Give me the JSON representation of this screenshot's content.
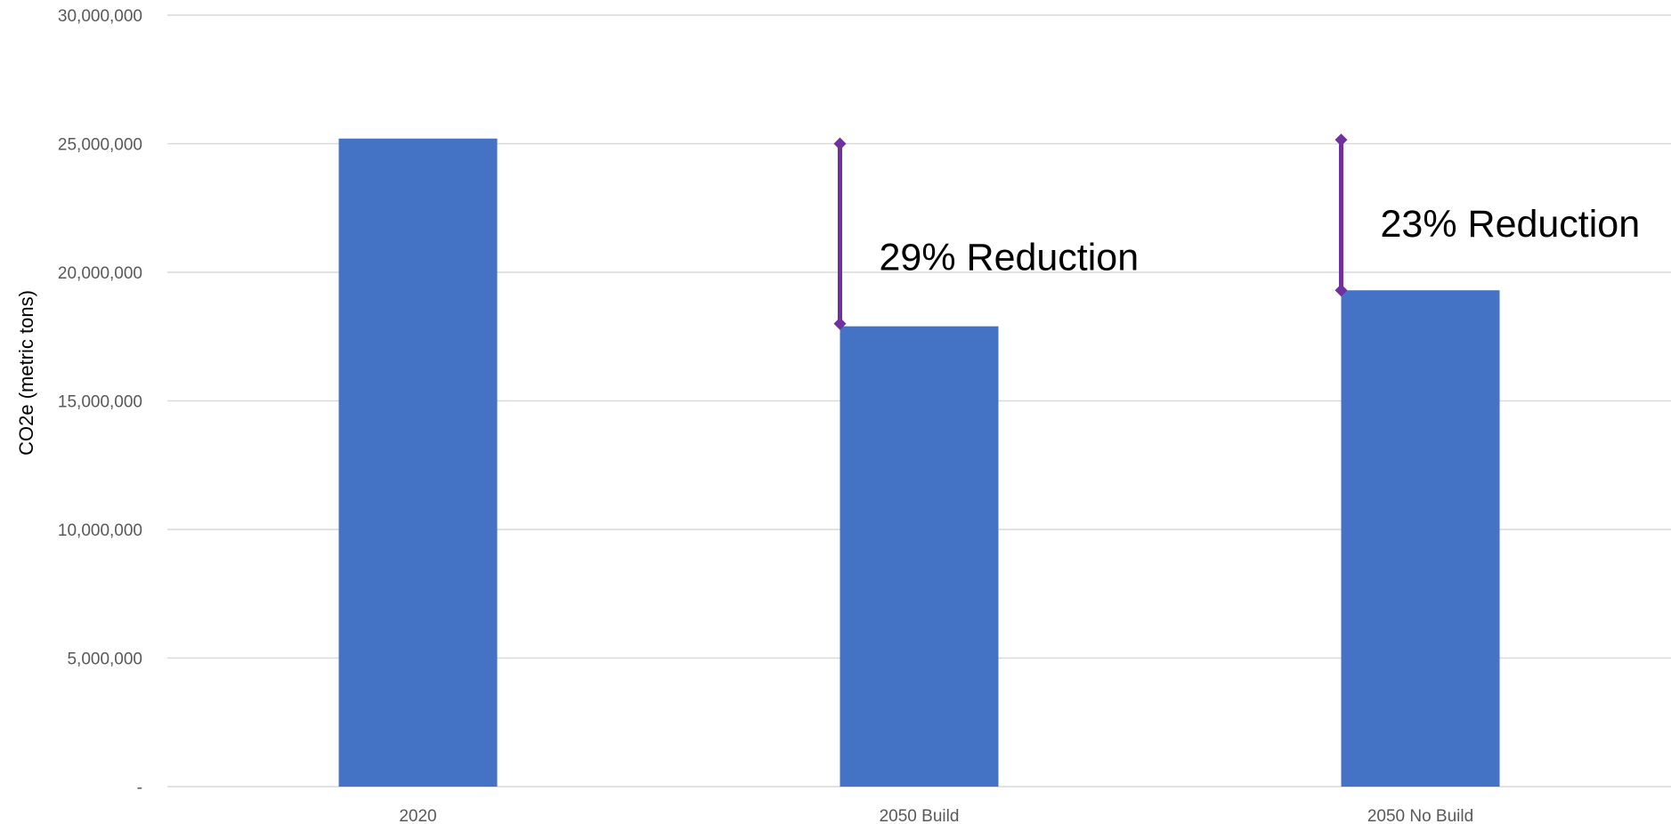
{
  "chart_data": {
    "type": "bar",
    "title": "",
    "xlabel": "",
    "ylabel": "CO2e (metric tons)",
    "categories": [
      "2020",
      "2050 Build",
      "2050 No Build"
    ],
    "values": [
      25200000,
      17900000,
      19300000
    ],
    "ylim": [
      0,
      30000000
    ],
    "yticks": [
      {
        "value": 0,
        "label": "-"
      },
      {
        "value": 5000000,
        "label": "5,000,000"
      },
      {
        "value": 10000000,
        "label": "10,000,000"
      },
      {
        "value": 15000000,
        "label": "15,000,000"
      },
      {
        "value": 20000000,
        "label": "20,000,000"
      },
      {
        "value": 25000000,
        "label": "25,000,000"
      },
      {
        "value": 30000000,
        "label": "30,000,000"
      }
    ],
    "grid": true,
    "legend": "none",
    "bar_color": "#4472C4",
    "annotations": [
      {
        "category": "2050 Build",
        "from": 25000000,
        "to": 18000000,
        "label": "29% Reduction",
        "color": "#7030A0"
      },
      {
        "category": "2050 No Build",
        "from": 25150000,
        "to": 19300000,
        "label": "23% Reduction",
        "color": "#7030A0"
      }
    ]
  }
}
